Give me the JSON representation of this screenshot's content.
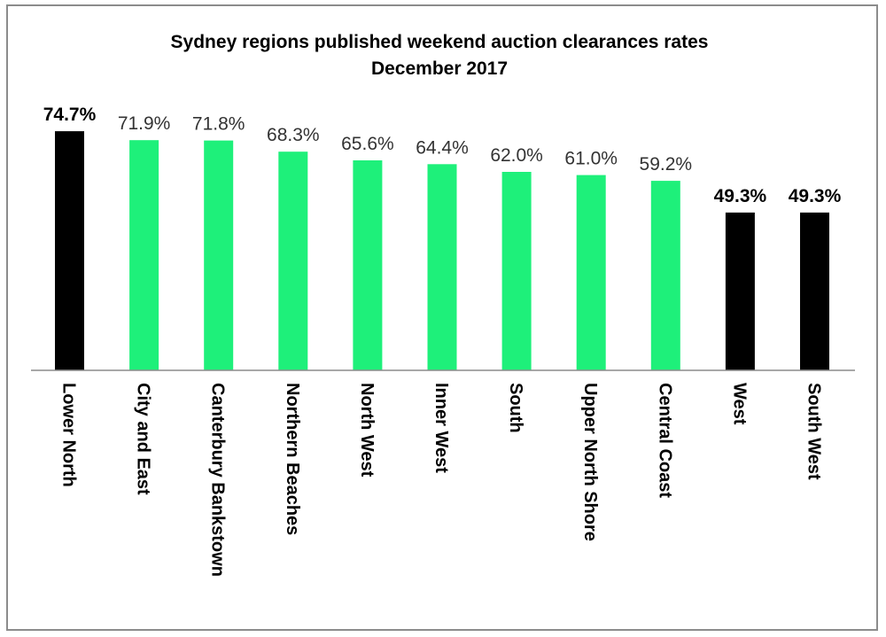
{
  "chart_data": {
    "type": "bar",
    "title": "Sydney regions published  weekend auction  clearances rates",
    "subtitle": "December 2017",
    "categories": [
      "Lower North",
      "City and East",
      "Canterbury Bankstown",
      "Northern Beaches",
      "North West",
      "Inner West",
      "South",
      "Upper North Shore",
      "Central Coast",
      "West",
      "South West"
    ],
    "values": [
      74.7,
      71.9,
      71.8,
      68.3,
      65.6,
      64.4,
      62.0,
      61.0,
      59.2,
      49.3,
      49.3
    ],
    "value_labels": [
      "74.7%",
      "71.9%",
      "71.8%",
      "68.3%",
      "65.6%",
      "64.4%",
      "62.0%",
      "61.0%",
      "59.2%",
      "49.3%",
      "49.3%"
    ],
    "highlighted": [
      true,
      false,
      false,
      false,
      false,
      false,
      false,
      false,
      false,
      true,
      true
    ],
    "colors": {
      "highlight": "#000000",
      "normal": "#1ef07a",
      "axis": "#8c8c8c"
    },
    "ylim": [
      0,
      75
    ],
    "xlabel": "",
    "ylabel": "",
    "grid": false,
    "legend": "none"
  }
}
